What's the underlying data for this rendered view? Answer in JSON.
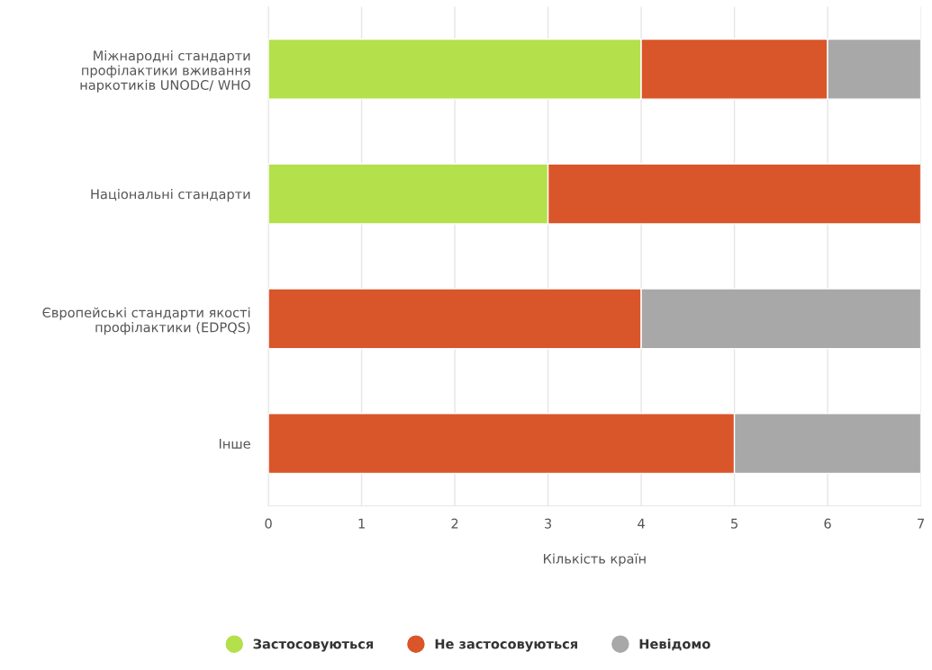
{
  "chart_data": {
    "type": "bar",
    "orientation": "horizontal",
    "stacked": true,
    "categories": [
      "Міжнародні стандарти\nпрофілактики вживання\nнаркотиків UNODC/ WHO",
      "Національні стандарти",
      "Європейські стандарти якості\nпрофілактики (EDPQS)",
      "Інше"
    ],
    "series": [
      {
        "name": "Застосовуються",
        "color": "#b3e04b",
        "values": [
          4,
          3,
          0,
          0
        ]
      },
      {
        "name": "Не застосовуються",
        "color": "#d9552a",
        "values": [
          2,
          4,
          4,
          5
        ]
      },
      {
        "name": "Невідомо",
        "color": "#a8a8a8",
        "values": [
          1,
          0,
          3,
          2
        ]
      }
    ],
    "xlabel": "Кількість країн",
    "xlim": [
      0,
      7
    ],
    "xticks": [
      0,
      1,
      2,
      3,
      4,
      5,
      6,
      7
    ],
    "grid": "x",
    "legend": "bottom",
    "marker": "circle"
  }
}
